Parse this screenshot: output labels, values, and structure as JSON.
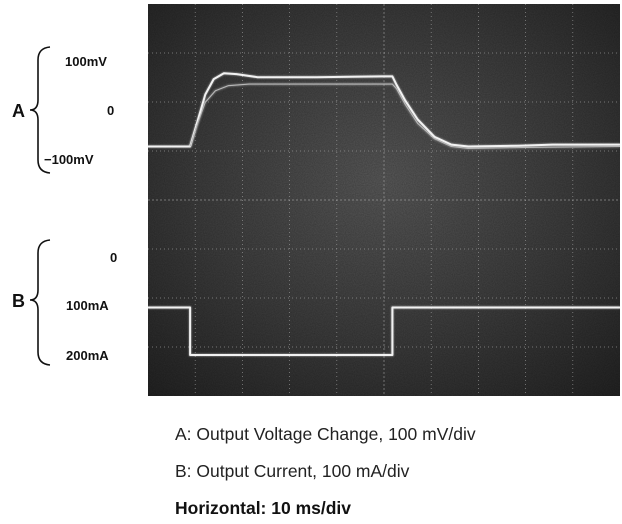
{
  "chart_data": {
    "type": "line",
    "channels": [
      {
        "name": "A",
        "tick_labels": [
          "100mV",
          "0",
          "−100mV"
        ],
        "series": [
          {
            "unit": "mV",
            "points": [
              [
                0,
                -100
              ],
              [
                5,
                -100
              ],
              [
                5.8,
                -40
              ],
              [
                6.8,
                35
              ],
              [
                7.8,
                75
              ],
              [
                9,
                90
              ],
              [
                10.5,
                88
              ],
              [
                13,
                80
              ],
              [
                16,
                80
              ],
              [
                20,
                80
              ],
              [
                24,
                81
              ],
              [
                28,
                82
              ],
              [
                29,
                82
              ],
              [
                29.5,
                60
              ],
              [
                30.5,
                20
              ],
              [
                32,
                -30
              ],
              [
                34,
                -75
              ],
              [
                36,
                -95
              ],
              [
                38,
                -100
              ],
              [
                44,
                -98
              ],
              [
                48,
                -95
              ],
              [
                56,
                -95
              ]
            ]
          },
          {
            "unit": "mV",
            "points": [
              [
                5,
                -100
              ],
              [
                5.8,
                -45
              ],
              [
                6.8,
                15
              ],
              [
                8,
                45
              ],
              [
                9.5,
                58
              ],
              [
                12,
                62
              ],
              [
                16,
                62
              ],
              [
                22,
                62
              ],
              [
                29,
                62
              ],
              [
                29.5,
                50
              ],
              [
                30.5,
                10
              ],
              [
                32,
                -40
              ],
              [
                34,
                -80
              ],
              [
                36,
                -100
              ],
              [
                38,
                -105
              ],
              [
                46,
                -102
              ],
              [
                56,
                -100
              ]
            ]
          }
        ]
      },
      {
        "name": "B",
        "tick_labels": [
          "0",
          "100mA",
          "200mA"
        ],
        "series": [
          {
            "unit": "mA",
            "points": [
              [
                0,
                100
              ],
              [
                5,
                100
              ],
              [
                5,
                200
              ],
              [
                29,
                200
              ],
              [
                29,
                100
              ],
              [
                56,
                100
              ]
            ]
          }
        ]
      }
    ],
    "xlim": [
      0,
      56
    ],
    "grid": true,
    "captions": [
      "A: Output Voltage Change, 100 mV/div",
      "B: Output Current, 100 mA/div",
      "Horizontal: 10 ms/div"
    ]
  }
}
